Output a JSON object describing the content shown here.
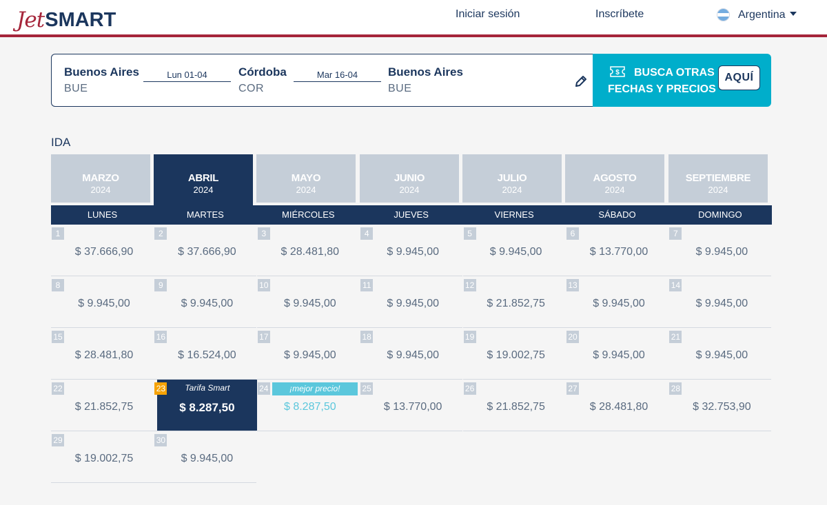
{
  "header": {
    "logo_jet": "Jet",
    "logo_smart": "SMART",
    "login": "Iniciar sesión",
    "signup": "Inscríbete",
    "country": "Argentina"
  },
  "search": {
    "origin_name": "Buenos Aires",
    "origin_code": "BUE",
    "outbound_date": "Lun 01-04",
    "destination_name": "Córdoba",
    "destination_code": "COR",
    "return_date": "Mar 16-04",
    "return_name": "Buenos Aires",
    "return_code": "BUE"
  },
  "promo": {
    "line1": "BUSCA OTRAS",
    "line2": "FECHAS Y PRECIOS",
    "button": "AQUÍ"
  },
  "section_title": "IDA",
  "months": [
    {
      "name": "MARZO",
      "year": "2024",
      "active": false
    },
    {
      "name": "ABRIL",
      "year": "2024",
      "active": true
    },
    {
      "name": "MAYO",
      "year": "2024",
      "active": false
    },
    {
      "name": "JUNIO",
      "year": "2024",
      "active": false
    },
    {
      "name": "JULIO",
      "year": "2024",
      "active": false
    },
    {
      "name": "AGOSTO",
      "year": "2024",
      "active": false
    },
    {
      "name": "SEPTIEMBRE",
      "year": "2024",
      "active": false
    }
  ],
  "weekdays": [
    "LUNES",
    "MARTES",
    "MIÉRCOLES",
    "JUEVES",
    "VIERNES",
    "SÁBADO",
    "DOMINGO"
  ],
  "selected_tag": "Tarifa Smart",
  "best_tag": "¡mejor precio!",
  "days": [
    {
      "num": "1",
      "price": "$ 37.666,90"
    },
    {
      "num": "2",
      "price": "$ 37.666,90"
    },
    {
      "num": "3",
      "price": "$ 28.481,80"
    },
    {
      "num": "4",
      "price": "$ 9.945,00"
    },
    {
      "num": "5",
      "price": "$ 9.945,00"
    },
    {
      "num": "6",
      "price": "$ 13.770,00"
    },
    {
      "num": "7",
      "price": "$ 9.945,00"
    },
    {
      "num": "8",
      "price": "$ 9.945,00"
    },
    {
      "num": "9",
      "price": "$ 9.945,00"
    },
    {
      "num": "10",
      "price": "$ 9.945,00"
    },
    {
      "num": "11",
      "price": "$ 9.945,00"
    },
    {
      "num": "12",
      "price": "$ 21.852,75"
    },
    {
      "num": "13",
      "price": "$ 9.945,00"
    },
    {
      "num": "14",
      "price": "$ 9.945,00"
    },
    {
      "num": "15",
      "price": "$ 28.481,80"
    },
    {
      "num": "16",
      "price": "$ 16.524,00"
    },
    {
      "num": "17",
      "price": "$ 9.945,00"
    },
    {
      "num": "18",
      "price": "$ 9.945,00"
    },
    {
      "num": "19",
      "price": "$ 19.002,75"
    },
    {
      "num": "20",
      "price": "$ 9.945,00"
    },
    {
      "num": "21",
      "price": "$ 9.945,00"
    },
    {
      "num": "22",
      "price": "$ 21.852,75"
    },
    {
      "num": "23",
      "price": "$ 8.287,50",
      "state": "selected"
    },
    {
      "num": "24",
      "price": "$ 8.287,50",
      "state": "best"
    },
    {
      "num": "25",
      "price": "$ 13.770,00"
    },
    {
      "num": "26",
      "price": "$ 21.852,75"
    },
    {
      "num": "27",
      "price": "$ 28.481,80"
    },
    {
      "num": "28",
      "price": "$ 32.753,90"
    },
    {
      "num": "29",
      "price": "$ 19.002,75"
    },
    {
      "num": "30",
      "price": "$ 9.945,00"
    }
  ],
  "colors": {
    "navy": "#1b365d",
    "brand_red": "#a5253a",
    "cyan": "#00aecb",
    "best_cyan": "#5bc7dc",
    "month_inactive": "#c5ced8",
    "selected_badge": "#f6a306"
  }
}
